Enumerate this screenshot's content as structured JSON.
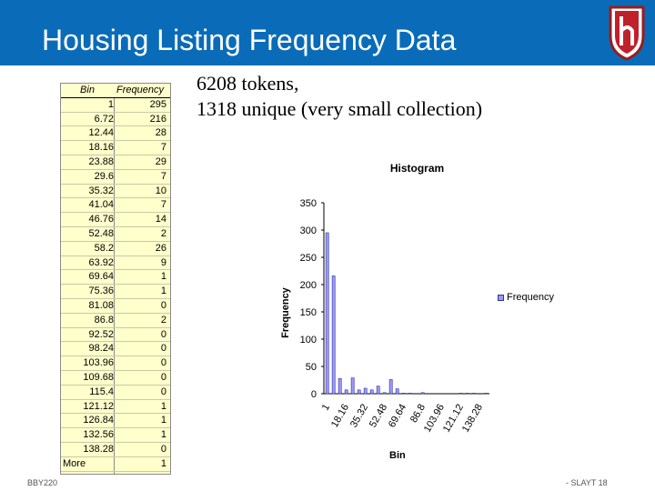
{
  "slide": {
    "title": "Housing Listing Frequency Data",
    "stats_line1": "6208 tokens,",
    "stats_line2": "1318 unique (very small collection)",
    "footer_left": "BBY220",
    "footer_right": "- SLAYT 18",
    "title_bar_color": "#0a6cb8",
    "logo_icon": "h-crest-icon"
  },
  "table": {
    "headers": [
      "Bin",
      "Frequency"
    ],
    "rows": [
      [
        "1",
        "295"
      ],
      [
        "6.72",
        "216"
      ],
      [
        "12.44",
        "28"
      ],
      [
        "18.16",
        "7"
      ],
      [
        "23.88",
        "29"
      ],
      [
        "29.6",
        "7"
      ],
      [
        "35.32",
        "10"
      ],
      [
        "41.04",
        "7"
      ],
      [
        "46.76",
        "14"
      ],
      [
        "52.48",
        "2"
      ],
      [
        "58.2",
        "26"
      ],
      [
        "63.92",
        "9"
      ],
      [
        "69.64",
        "1"
      ],
      [
        "75.36",
        "1"
      ],
      [
        "81.08",
        "0"
      ],
      [
        "86.8",
        "2"
      ],
      [
        "92.52",
        "0"
      ],
      [
        "98.24",
        "0"
      ],
      [
        "103.96",
        "0"
      ],
      [
        "109.68",
        "0"
      ],
      [
        "115.4",
        "0"
      ],
      [
        "121.12",
        "1"
      ],
      [
        "126.84",
        "1"
      ],
      [
        "132.56",
        "1"
      ],
      [
        "138.28",
        "0"
      ],
      [
        "More",
        "1"
      ]
    ]
  },
  "chart_data": {
    "type": "bar",
    "title": "Histogram",
    "xlabel": "Bin",
    "ylabel": "Frequency",
    "ylim": [
      0,
      350
    ],
    "yticks": [
      0,
      50,
      100,
      150,
      200,
      250,
      300,
      350
    ],
    "legend": "right",
    "grid": false,
    "categories": [
      "1",
      "6.72",
      "12.44",
      "18.16",
      "23.88",
      "29.6",
      "35.32",
      "41.04",
      "46.76",
      "52.48",
      "58.2",
      "63.92",
      "69.64",
      "75.36",
      "81.08",
      "86.8",
      "92.52",
      "98.24",
      "103.96",
      "109.68",
      "115.4",
      "121.12",
      "126.84",
      "132.56",
      "138.28",
      "More"
    ],
    "x_tick_labels": [
      "1",
      "18.16",
      "35.32",
      "52.48",
      "69.64",
      "86.8",
      "103.96",
      "121.12",
      "138.28"
    ],
    "series": [
      {
        "name": "Frequency",
        "color": "#9999ff",
        "values": [
          295,
          216,
          28,
          7,
          29,
          7,
          10,
          7,
          14,
          2,
          26,
          9,
          1,
          1,
          0,
          2,
          0,
          0,
          0,
          0,
          0,
          1,
          1,
          1,
          0,
          1
        ]
      }
    ]
  }
}
